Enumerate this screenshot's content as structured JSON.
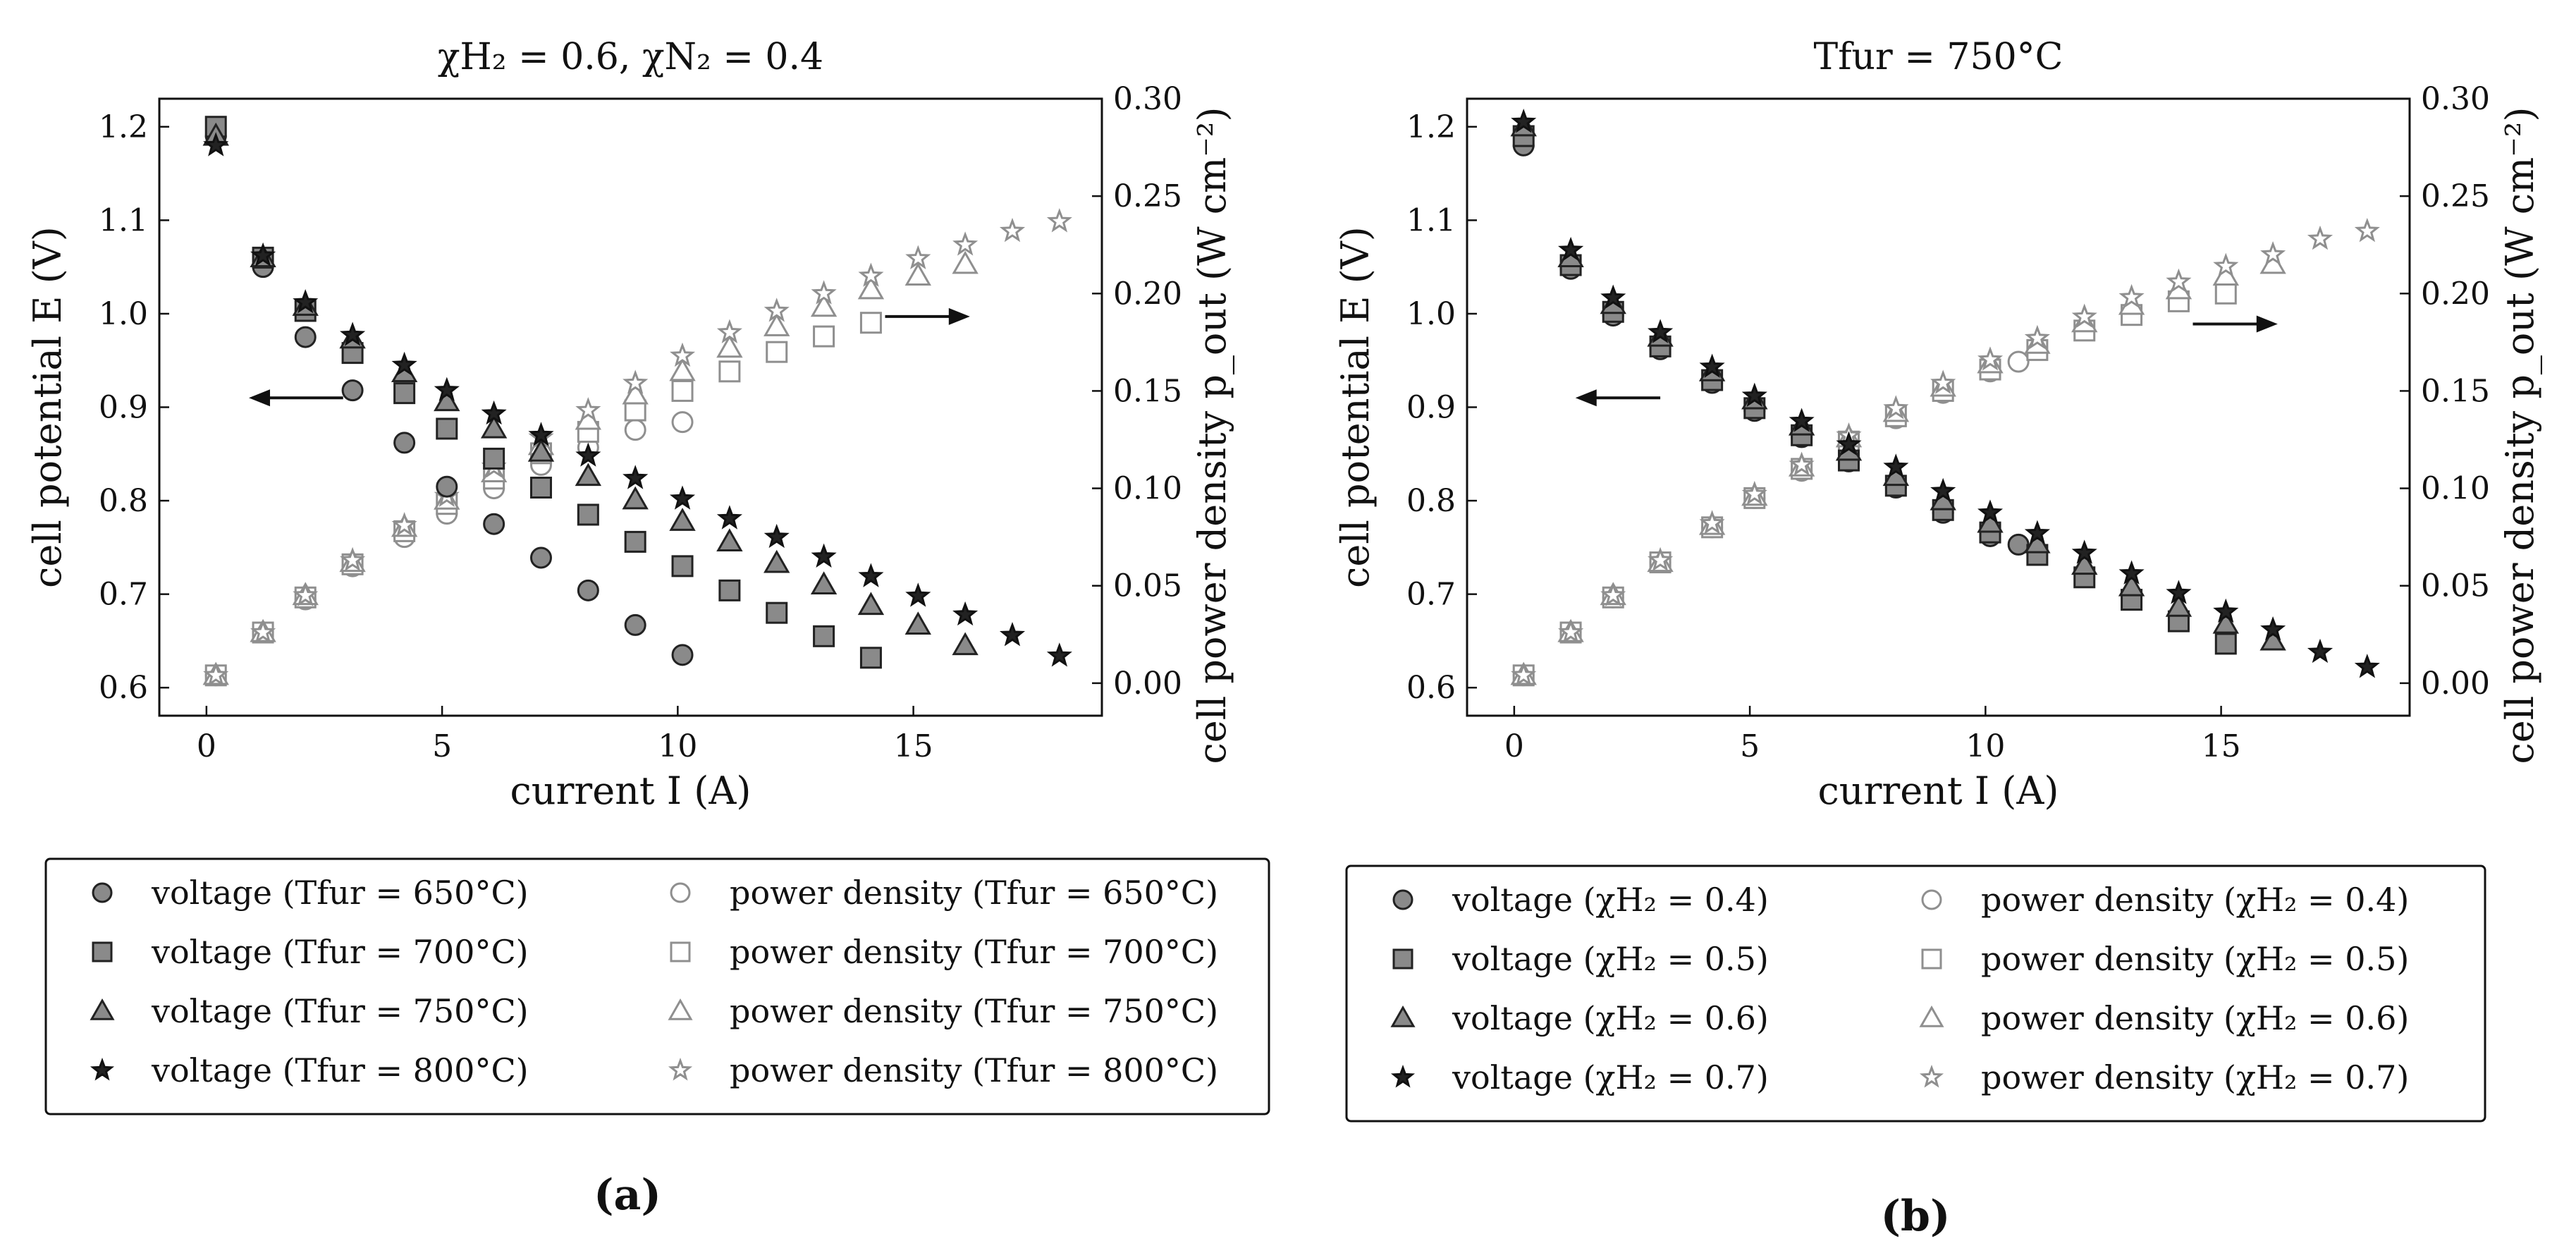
{
  "figure": {
    "panels": [
      "(a)",
      "(b)"
    ]
  },
  "chart_data": [
    {
      "type": "scatter",
      "title": "χH₂ = 0.6, χN₂ = 0.4",
      "xlabel": "current I (A)",
      "ylabel_left": "cell potential E (V)",
      "ylabel_right": "cell power density p_out (W cm⁻²)",
      "xlim": [
        -1,
        19
      ],
      "ylim_left": [
        0.57,
        1.23
      ],
      "ylim_right": [
        -0.0167,
        0.3
      ],
      "xticks": [
        0,
        5,
        10,
        15
      ],
      "yticks_left": [
        0.6,
        0.7,
        0.8,
        0.9,
        1.0,
        1.1,
        1.2
      ],
      "yticks_right": [
        0.0,
        0.05,
        0.1,
        0.15,
        0.2,
        0.25,
        0.3
      ],
      "legend_position": "below",
      "annotations": [
        "arrow pointing left to voltage axis",
        "arrow pointing right to power density axis"
      ],
      "series": [
        {
          "name": "voltage (Tfur = 650°C)",
          "marker": "circle",
          "axis": "left",
          "x": [
            0.2,
            1.2,
            2.1,
            3.1,
            4.2,
            5.1,
            6.1,
            7.1,
            8.1,
            9.1,
            10.1
          ],
          "y": [
            1.19,
            1.05,
            0.975,
            0.918,
            0.862,
            0.815,
            0.775,
            0.739,
            0.704,
            0.667,
            0.635
          ]
        },
        {
          "name": "voltage (Tfur = 700°C)",
          "marker": "square",
          "axis": "left",
          "x": [
            0.2,
            1.2,
            2.1,
            3.1,
            4.2,
            5.1,
            6.1,
            7.1,
            8.1,
            9.1,
            10.1,
            11.1,
            12.1,
            13.1,
            14.1
          ],
          "y": [
            1.2,
            1.06,
            1.003,
            0.958,
            0.915,
            0.877,
            0.845,
            0.814,
            0.785,
            0.756,
            0.73,
            0.704,
            0.68,
            0.655,
            0.632
          ]
        },
        {
          "name": "voltage (Tfur = 750°C)",
          "marker": "triangle",
          "axis": "left",
          "x": [
            0.2,
            1.2,
            2.1,
            3.1,
            4.2,
            5.1,
            6.1,
            7.1,
            8.1,
            9.1,
            10.1,
            11.1,
            12.1,
            13.1,
            14.1,
            15.1,
            16.1
          ],
          "y": [
            1.19,
            1.06,
            1.008,
            0.973,
            0.937,
            0.906,
            0.877,
            0.852,
            0.826,
            0.801,
            0.778,
            0.756,
            0.733,
            0.71,
            0.688,
            0.667,
            0.645
          ]
        },
        {
          "name": "voltage (Tfur = 800°C)",
          "marker": "star",
          "axis": "left",
          "x": [
            0.2,
            1.2,
            2.1,
            3.1,
            4.2,
            5.1,
            6.1,
            7.1,
            8.1,
            9.1,
            10.1,
            11.1,
            12.1,
            13.1,
            14.1,
            15.1,
            16.1,
            17.1,
            18.1
          ],
          "y": [
            1.18,
            1.062,
            1.012,
            0.977,
            0.945,
            0.918,
            0.893,
            0.87,
            0.848,
            0.824,
            0.802,
            0.781,
            0.761,
            0.74,
            0.719,
            0.698,
            0.678,
            0.656,
            0.634
          ]
        },
        {
          "name": "power density (Tfur = 650°C)",
          "marker": "circle-open",
          "axis": "right",
          "x": [
            0.2,
            1.2,
            2.1,
            3.1,
            4.2,
            5.1,
            6.1,
            7.1,
            8.1,
            9.1,
            10.1
          ],
          "y": [
            0.004,
            0.026,
            0.043,
            0.06,
            0.075,
            0.087,
            0.1,
            0.112,
            0.121,
            0.13,
            0.134
          ]
        },
        {
          "name": "power density (Tfur = 700°C)",
          "marker": "square-open",
          "axis": "right",
          "x": [
            0.2,
            1.2,
            2.1,
            3.1,
            4.2,
            5.1,
            6.1,
            7.1,
            8.1,
            9.1,
            10.1,
            11.1,
            12.1,
            13.1,
            14.1
          ],
          "y": [
            0.004,
            0.026,
            0.044,
            0.061,
            0.078,
            0.092,
            0.105,
            0.118,
            0.129,
            0.14,
            0.15,
            0.16,
            0.17,
            0.178,
            0.185
          ]
        },
        {
          "name": "power density (Tfur = 750°C)",
          "marker": "triangle-open",
          "axis": "right",
          "x": [
            0.2,
            1.2,
            2.1,
            3.1,
            4.2,
            5.1,
            6.1,
            7.1,
            8.1,
            9.1,
            10.1,
            11.1,
            12.1,
            13.1,
            14.1,
            15.1,
            16.1
          ],
          "y": [
            0.004,
            0.026,
            0.045,
            0.062,
            0.08,
            0.094,
            0.108,
            0.122,
            0.135,
            0.148,
            0.16,
            0.172,
            0.183,
            0.193,
            0.202,
            0.209,
            0.215
          ]
        },
        {
          "name": "power density (Tfur = 800°C)",
          "marker": "star-open",
          "axis": "right",
          "x": [
            0.2,
            1.2,
            2.1,
            3.1,
            4.2,
            5.1,
            6.1,
            7.1,
            8.1,
            9.1,
            10.1,
            11.1,
            12.1,
            13.1,
            14.1,
            15.1,
            16.1,
            17.1,
            18.1
          ],
          "y": [
            0.004,
            0.026,
            0.045,
            0.063,
            0.081,
            0.096,
            0.111,
            0.126,
            0.14,
            0.154,
            0.168,
            0.18,
            0.191,
            0.2,
            0.209,
            0.218,
            0.225,
            0.232,
            0.237
          ]
        }
      ],
      "legend": {
        "left": [
          "voltage (Tfur = 650°C)",
          "voltage (Tfur = 700°C)",
          "voltage (Tfur = 750°C)",
          "voltage (Tfur = 800°C)"
        ],
        "right": [
          "power density (Tfur = 650°C)",
          "power density (Tfur = 700°C)",
          "power density (Tfur = 750°C)",
          "power density (Tfur = 800°C)"
        ]
      }
    },
    {
      "type": "scatter",
      "title": "Tfur = 750°C",
      "xlabel": "current I (A)",
      "ylabel_left": "cell potential E (V)",
      "ylabel_right": "cell power density p_out (W cm⁻²)",
      "xlim": [
        -1,
        19
      ],
      "ylim_left": [
        0.57,
        1.23
      ],
      "ylim_right": [
        -0.0167,
        0.3
      ],
      "xticks": [
        0,
        5,
        10,
        15
      ],
      "yticks_left": [
        0.6,
        0.7,
        0.8,
        0.9,
        1.0,
        1.1,
        1.2
      ],
      "yticks_right": [
        0.0,
        0.05,
        0.1,
        0.15,
        0.2,
        0.25,
        0.3
      ],
      "legend_position": "below",
      "annotations": [
        "arrow pointing left to voltage axis",
        "arrow pointing right to power density axis"
      ],
      "series": [
        {
          "name": "voltage (χH₂ = 0.4)",
          "marker": "circle",
          "axis": "left",
          "x": [
            0.2,
            1.2,
            2.1,
            3.1,
            4.2,
            5.1,
            6.1,
            7.1,
            8.1,
            9.1,
            10.1,
            10.7
          ],
          "y": [
            1.18,
            1.048,
            0.998,
            0.962,
            0.926,
            0.896,
            0.868,
            0.842,
            0.814,
            0.787,
            0.762,
            0.753
          ]
        },
        {
          "name": "voltage (χH₂ = 0.5)",
          "marker": "square",
          "axis": "left",
          "x": [
            0.2,
            1.2,
            2.1,
            3.1,
            4.2,
            5.1,
            6.1,
            7.1,
            8.1,
            9.1,
            10.1,
            11.1,
            12.1,
            13.1,
            14.1,
            15.1
          ],
          "y": [
            1.19,
            1.052,
            1.002,
            0.965,
            0.929,
            0.899,
            0.87,
            0.843,
            0.816,
            0.79,
            0.766,
            0.742,
            0.718,
            0.694,
            0.671,
            0.647
          ]
        },
        {
          "name": "voltage (χH₂ = 0.6)",
          "marker": "triangle",
          "axis": "left",
          "x": [
            0.2,
            1.2,
            2.1,
            3.1,
            4.2,
            5.1,
            6.1,
            7.1,
            8.1,
            9.1,
            10.1,
            11.1,
            12.1,
            13.1,
            14.1,
            15.1,
            16.1
          ],
          "y": [
            1.2,
            1.06,
            1.01,
            0.975,
            0.938,
            0.908,
            0.88,
            0.853,
            0.826,
            0.8,
            0.776,
            0.754,
            0.731,
            0.708,
            0.686,
            0.668,
            0.65
          ]
        },
        {
          "name": "voltage (χH₂ = 0.7)",
          "marker": "star",
          "axis": "left",
          "x": [
            0.2,
            1.2,
            2.1,
            3.1,
            4.2,
            5.1,
            6.1,
            7.1,
            8.1,
            9.1,
            10.1,
            11.1,
            12.1,
            13.1,
            14.1,
            15.1,
            16.1,
            17.1,
            18.1
          ],
          "y": [
            1.205,
            1.068,
            1.017,
            0.98,
            0.943,
            0.912,
            0.885,
            0.86,
            0.836,
            0.81,
            0.787,
            0.765,
            0.744,
            0.722,
            0.701,
            0.681,
            0.662,
            0.638,
            0.622
          ]
        },
        {
          "name": "power density (χH₂ = 0.4)",
          "marker": "circle-open",
          "axis": "right",
          "x": [
            0.2,
            1.2,
            2.1,
            3.1,
            4.2,
            5.1,
            6.1,
            7.1,
            8.1,
            9.1,
            10.1,
            10.7
          ],
          "y": [
            0.004,
            0.026,
            0.044,
            0.062,
            0.08,
            0.095,
            0.109,
            0.124,
            0.136,
            0.149,
            0.16,
            0.165
          ]
        },
        {
          "name": "power density (χH₂ = 0.5)",
          "marker": "square-open",
          "axis": "right",
          "x": [
            0.2,
            1.2,
            2.1,
            3.1,
            4.2,
            5.1,
            6.1,
            7.1,
            8.1,
            9.1,
            10.1,
            11.1,
            12.1,
            13.1,
            14.1,
            15.1
          ],
          "y": [
            0.004,
            0.026,
            0.044,
            0.062,
            0.08,
            0.095,
            0.11,
            0.124,
            0.137,
            0.15,
            0.161,
            0.171,
            0.181,
            0.189,
            0.196,
            0.2
          ]
        },
        {
          "name": "power density (χH₂ = 0.6)",
          "marker": "triangle-open",
          "axis": "right",
          "x": [
            0.2,
            1.2,
            2.1,
            3.1,
            4.2,
            5.1,
            6.1,
            7.1,
            8.1,
            9.1,
            10.1,
            11.1,
            12.1,
            13.1,
            14.1,
            15.1,
            16.1
          ],
          "y": [
            0.004,
            0.026,
            0.045,
            0.062,
            0.081,
            0.096,
            0.111,
            0.126,
            0.139,
            0.152,
            0.164,
            0.174,
            0.185,
            0.194,
            0.202,
            0.209,
            0.215
          ]
        },
        {
          "name": "power density (χH₂ = 0.7)",
          "marker": "star-open",
          "axis": "right",
          "x": [
            0.2,
            1.2,
            2.1,
            3.1,
            4.2,
            5.1,
            6.1,
            7.1,
            8.1,
            9.1,
            10.1,
            11.1,
            12.1,
            13.1,
            14.1,
            15.1,
            16.1,
            17.1,
            18.1
          ],
          "y": [
            0.004,
            0.026,
            0.045,
            0.063,
            0.082,
            0.097,
            0.112,
            0.127,
            0.141,
            0.154,
            0.166,
            0.177,
            0.188,
            0.198,
            0.206,
            0.214,
            0.22,
            0.228,
            0.232
          ]
        }
      ],
      "legend": {
        "left": [
          "voltage (χH₂ = 0.4)",
          "voltage (χH₂ = 0.5)",
          "voltage (χH₂ = 0.6)",
          "voltage (χH₂ = 0.7)"
        ],
        "right": [
          "power density (χH₂ = 0.4)",
          "power density (χH₂ = 0.5)",
          "power density (χH₂ = 0.6)",
          "power density (χH₂ = 0.7)"
        ]
      }
    }
  ]
}
